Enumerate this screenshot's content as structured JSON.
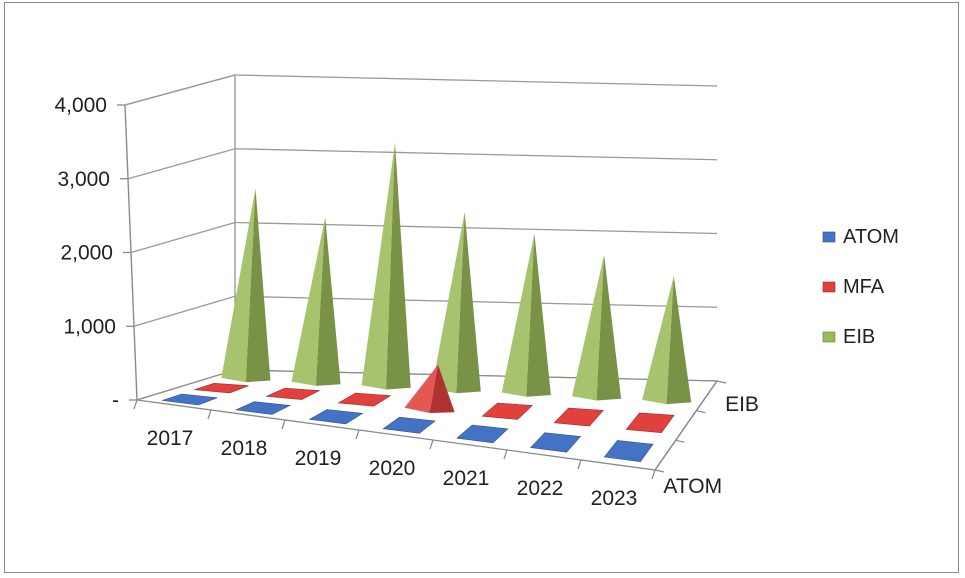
{
  "chart_data": {
    "type": "bar",
    "bar_shape": "cone-3d",
    "categories": [
      "2017",
      "2018",
      "2019",
      "2020",
      "2021",
      "2022",
      "2023"
    ],
    "series": [
      {
        "name": "ATOM",
        "color": "#4472c4",
        "values": [
          0,
          0,
          0,
          0,
          0,
          0,
          0
        ]
      },
      {
        "name": "MFA",
        "color": "#e0413d",
        "values": [
          0,
          0,
          0,
          550,
          0,
          0,
          0
        ]
      },
      {
        "name": "EIB",
        "color": "#9bbb59",
        "values": [
          2550,
          2200,
          3250,
          2350,
          2100,
          1850,
          1600
        ]
      }
    ],
    "depth_axis_labels": [
      "EIB",
      "ATOM"
    ],
    "y_ticks": [
      "-",
      "1,000",
      "2,000",
      "3,000",
      "4,000"
    ],
    "ylim": [
      0,
      4000
    ],
    "title": "",
    "xlabel": "",
    "ylabel": "",
    "legend_position": "right",
    "grid": true
  }
}
